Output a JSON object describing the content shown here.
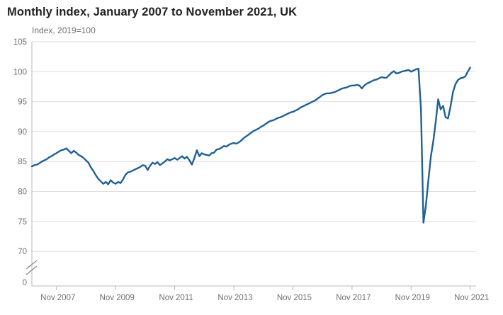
{
  "header": {
    "title": "Monthly index, January 2007 to November 2021, UK"
  },
  "chart_data": {
    "type": "line",
    "title": "Monthly index, January 2007 to November 2021, UK",
    "subtitle": "Index, 2019=100",
    "ylabel": "Index, 2019=100",
    "xlabel": "",
    "frequency": "monthly",
    "period_start": "Jan 2007",
    "period_end": "Nov 2021",
    "grid": "horizontal",
    "legend": "none",
    "ylim": [
      70,
      105
    ],
    "y_axis_break_to_zero": true,
    "zero_label": "0",
    "y_ticks": [
      70,
      75,
      80,
      85,
      90,
      95,
      100,
      105
    ],
    "x_tick_labels": [
      "Nov 2007",
      "Nov 2009",
      "Nov 2011",
      "Nov 2013",
      "Nov 2015",
      "Nov 2017",
      "Nov 2019",
      "Nov 2021"
    ],
    "x_tick_month_indices": [
      10,
      34,
      58,
      82,
      106,
      130,
      154,
      178
    ],
    "colors": {
      "line": "#206095",
      "grid": "#dedede",
      "axis": "#b3bac1",
      "tick_text": "#707071",
      "title_text": "#222222",
      "break_mark": "#8a8a8a"
    },
    "series": [
      {
        "name": "Monthly index (2019=100)",
        "start": "2007-01",
        "values": [
          84.2,
          84.4,
          84.5,
          84.7,
          85.0,
          85.2,
          85.4,
          85.7,
          85.9,
          86.2,
          86.4,
          86.7,
          86.9,
          87.0,
          87.2,
          86.8,
          86.4,
          86.8,
          86.5,
          86.1,
          85.9,
          85.6,
          85.2,
          84.8,
          84.0,
          83.4,
          82.7,
          82.1,
          81.7,
          81.3,
          81.6,
          81.2,
          81.9,
          81.5,
          81.3,
          81.6,
          81.4,
          82.0,
          82.8,
          83.2,
          83.3,
          83.5,
          83.7,
          83.9,
          84.1,
          84.4,
          84.3,
          83.6,
          84.3,
          84.8,
          84.6,
          84.9,
          84.4,
          84.7,
          85.0,
          85.4,
          85.2,
          85.4,
          85.6,
          85.3,
          85.6,
          85.9,
          85.5,
          85.8,
          85.2,
          84.5,
          85.6,
          86.9,
          85.9,
          86.4,
          86.2,
          86.1,
          86.0,
          86.4,
          86.5,
          87.0,
          87.1,
          87.3,
          87.6,
          87.5,
          87.8,
          88.0,
          88.1,
          88.0,
          88.2,
          88.5,
          88.9,
          89.2,
          89.5,
          89.8,
          90.1,
          90.3,
          90.5,
          90.8,
          91.0,
          91.3,
          91.6,
          91.8,
          91.9,
          92.1,
          92.3,
          92.4,
          92.6,
          92.8,
          93.0,
          93.2,
          93.3,
          93.5,
          93.7,
          94.0,
          94.2,
          94.4,
          94.6,
          94.8,
          95.0,
          95.2,
          95.5,
          95.8,
          96.1,
          96.3,
          96.4,
          96.4,
          96.5,
          96.6,
          96.8,
          97.0,
          97.2,
          97.3,
          97.4,
          97.6,
          97.7,
          97.7,
          97.8,
          97.7,
          97.2,
          97.7,
          98.0,
          98.2,
          98.4,
          98.6,
          98.7,
          98.9,
          99.1,
          99.0,
          99.0,
          99.4,
          99.8,
          100.1,
          99.7,
          99.8,
          100.0,
          100.1,
          100.2,
          100.3,
          100.0,
          100.2,
          100.4,
          100.5,
          93.8,
          74.8,
          77.6,
          81.8,
          85.8,
          88.4,
          91.6,
          95.4,
          93.7,
          94.3,
          92.4,
          92.2,
          94.2,
          96.6,
          97.9,
          98.6,
          98.9,
          99.0,
          99.2,
          100.0,
          100.7
        ]
      }
    ]
  }
}
